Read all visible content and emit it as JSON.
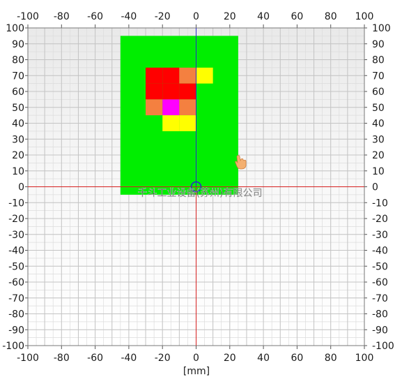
{
  "chart_data": {
    "type": "heatmap",
    "xlim": [
      -100,
      100
    ],
    "ylim": [
      -100,
      100
    ],
    "x_ticks": [
      -100,
      -80,
      -60,
      -40,
      -20,
      0,
      20,
      40,
      60,
      80,
      100
    ],
    "y_ticks": [
      100,
      90,
      80,
      70,
      60,
      50,
      40,
      30,
      20,
      10,
      0,
      -10,
      -20,
      -30,
      -40,
      -50,
      -60,
      -70,
      -80,
      -90,
      -100
    ],
    "xlabel": "[mm]",
    "grid": true,
    "cell_size_mm": 10,
    "background_region": {
      "x": [
        -45,
        25
      ],
      "y": [
        -5,
        95
      ],
      "color": "#00ee00"
    },
    "cells": [
      {
        "x": -25,
        "y": 70,
        "value": "red"
      },
      {
        "x": -15,
        "y": 70,
        "value": "red"
      },
      {
        "x": -5,
        "y": 70,
        "value": "orange"
      },
      {
        "x": 5,
        "y": 70,
        "value": "yellow"
      },
      {
        "x": -25,
        "y": 60,
        "value": "red"
      },
      {
        "x": -15,
        "y": 60,
        "value": "red"
      },
      {
        "x": -5,
        "y": 60,
        "value": "red"
      },
      {
        "x": -25,
        "y": 50,
        "value": "orange"
      },
      {
        "x": -15,
        "y": 50,
        "value": "magenta"
      },
      {
        "x": -5,
        "y": 50,
        "value": "orange"
      },
      {
        "x": -15,
        "y": 40,
        "value": "yellow"
      },
      {
        "x": -5,
        "y": 40,
        "value": "yellow"
      }
    ],
    "value_colors": {
      "red": "#ff0000",
      "orange": "#f48040",
      "yellow": "#ffff00",
      "magenta": "#ff00ff"
    },
    "crosshair": {
      "x": 0,
      "y": 0,
      "horizontal_color": "#d62020",
      "vertical_colors": [
        "#2a2acc",
        "#d62020"
      ]
    },
    "watermark": "千斗工业设备(苏州)有限公司"
  }
}
